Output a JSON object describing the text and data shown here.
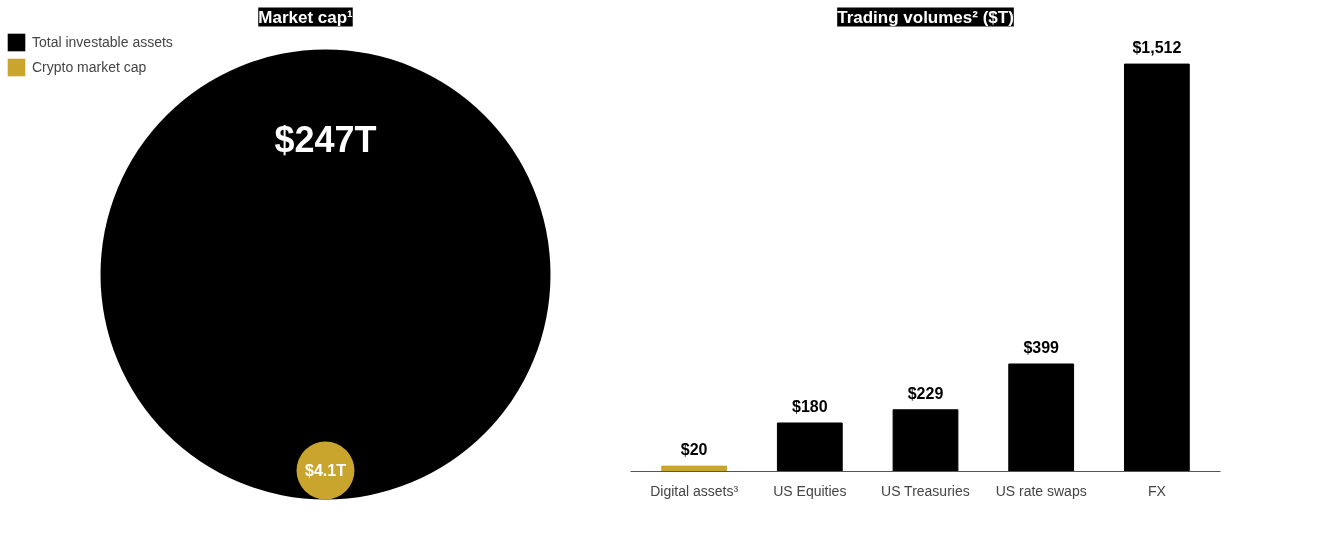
{
  "chart_data": [
    {
      "type": "other",
      "title": "Market cap¹",
      "categories": [
        "Total investable assets",
        "Crypto market cap"
      ],
      "values": [
        247,
        4.1
      ],
      "colors": [
        "#000000",
        "#c9a52e"
      ],
      "value_labels": [
        "$247T",
        "$4.1T"
      ]
    },
    {
      "type": "bar",
      "title": "Trading volumes² ($T)",
      "categories": [
        "Digital assets³",
        "US Equities",
        "US Treasuries",
        "US rate swaps",
        "FX"
      ],
      "values": [
        20,
        180,
        229,
        399,
        1512
      ],
      "colors": [
        "#c9a52e",
        "#000000",
        "#000000",
        "#000000",
        "#000000"
      ],
      "value_labels": [
        "$20",
        "$180",
        "$229",
        "$399",
        "$1,512"
      ]
    }
  ]
}
